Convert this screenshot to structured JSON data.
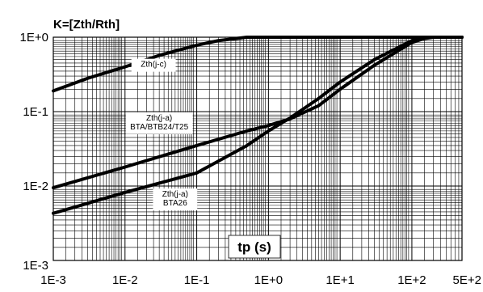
{
  "chart_data": {
    "type": "line",
    "title": "K=[Zth/Rth]",
    "xlabel": "tp (s)",
    "ylabel": "",
    "x_scale": "log",
    "y_scale": "log",
    "xlim": [
      0.001,
      500
    ],
    "ylim": [
      0.001,
      1
    ],
    "grid": true,
    "x_ticks": [
      {
        "value": 0.001,
        "label": "1E-3"
      },
      {
        "value": 0.01,
        "label": "1E-2"
      },
      {
        "value": 0.1,
        "label": "1E-1"
      },
      {
        "value": 1,
        "label": "1E+0"
      },
      {
        "value": 10,
        "label": "1E+1"
      },
      {
        "value": 100,
        "label": "1E+2"
      },
      {
        "value": 500,
        "label": "5E+2"
      }
    ],
    "y_ticks": [
      {
        "value": 0.001,
        "label": "1E-3"
      },
      {
        "value": 0.01,
        "label": "1E-2"
      },
      {
        "value": 0.1,
        "label": "1E-1"
      },
      {
        "value": 1,
        "label": "1E+0"
      }
    ],
    "series": [
      {
        "x": [
          0.001,
          0.003,
          0.01,
          0.03,
          0.1,
          0.2,
          0.5,
          1,
          500
        ],
        "y": [
          0.19,
          0.28,
          0.4,
          0.57,
          0.78,
          0.9,
          1.0,
          1.0,
          1.0
        ]
      },
      {
        "x": [
          0.001,
          0.01,
          0.1,
          0.5,
          1,
          2,
          5,
          10,
          30,
          100,
          150,
          200,
          500
        ],
        "y": [
          0.0095,
          0.018,
          0.035,
          0.055,
          0.065,
          0.08,
          0.12,
          0.2,
          0.42,
          0.85,
          0.96,
          1.0,
          1.0
        ]
      },
      {
        "x": [
          0.001,
          0.01,
          0.1,
          0.5,
          1,
          2,
          5,
          10,
          30,
          100,
          150,
          200,
          500
        ],
        "y": [
          0.0043,
          0.0082,
          0.015,
          0.035,
          0.055,
          0.082,
          0.15,
          0.25,
          0.5,
          0.9,
          0.98,
          1.0,
          1.0
        ]
      }
    ],
    "annotations": [
      {
        "lines": [
          "Zth(j-c)"
        ],
        "x": 0.025,
        "y": 0.42
      },
      {
        "lines": [
          "Zth(j-a)",
          "BTA/BTB24/T25"
        ],
        "x": 0.03,
        "y": 0.07
      },
      {
        "lines": [
          "Zth(j-a)",
          "BTA26"
        ],
        "x": 0.05,
        "y": 0.0066
      }
    ]
  }
}
